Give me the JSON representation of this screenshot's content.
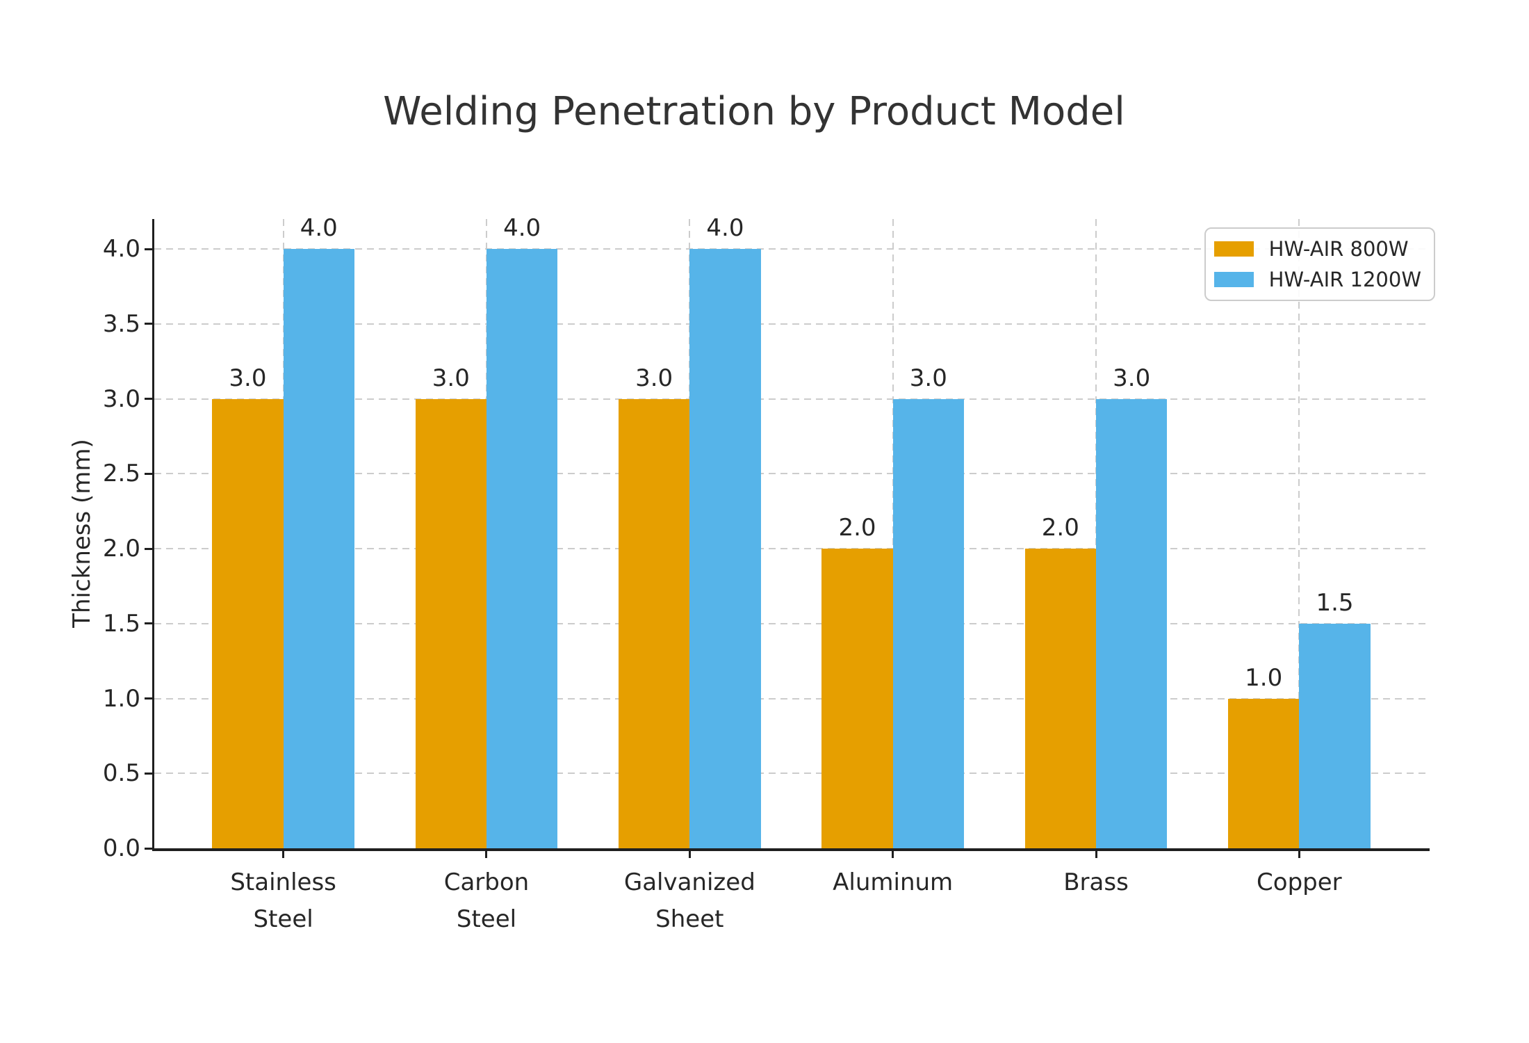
{
  "title": "Welding Penetration by Product Model",
  "chart_data": {
    "type": "bar",
    "title": "Welding Penetration by Product Model",
    "categories": [
      "Stainless\nSteel",
      "Carbon\nSteel",
      "Galvanized\nSheet",
      "Aluminum",
      "Brass",
      "Copper"
    ],
    "series": [
      {
        "name": "HW-AIR 800W",
        "color": "#E69F00",
        "values": [
          3.0,
          3.0,
          3.0,
          2.0,
          2.0,
          1.0
        ]
      },
      {
        "name": "HW-AIR 1200W",
        "color": "#56B4E9",
        "values": [
          4.0,
          4.0,
          4.0,
          3.0,
          3.0,
          1.5
        ]
      }
    ],
    "xlabel": "",
    "ylabel": "Thickness (mm)",
    "ylim": [
      0,
      4.2
    ],
    "yticks": [
      0.0,
      0.5,
      1.0,
      1.5,
      2.0,
      2.5,
      3.0,
      3.5,
      4.0
    ],
    "ytick_labels": [
      "0.0",
      "0.5",
      "1.0",
      "1.5",
      "2.0",
      "2.5",
      "3.0",
      "3.5",
      "4.0"
    ],
    "value_labels": [
      "3.0",
      "4.0",
      "3.0",
      "4.0",
      "3.0",
      "4.0",
      "2.0",
      "3.0",
      "2.0",
      "3.0",
      "1.0",
      "1.5"
    ],
    "grid": true,
    "grid_style": "dashed",
    "legend_position": "upper-right",
    "bar_value_label_format": "one-decimal"
  },
  "colors": {
    "series_800w": "#E69F00",
    "series_1200w": "#56B4E9",
    "gridline": "#cccccc",
    "axis": "#1f1f1f",
    "text": "#262626",
    "title": "#333333",
    "background": "#ffffff"
  }
}
